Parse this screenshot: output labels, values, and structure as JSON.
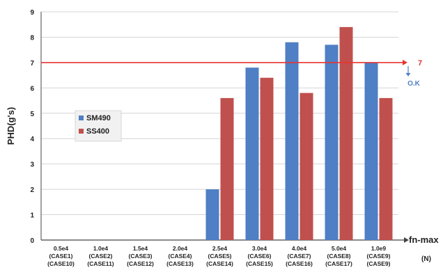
{
  "chart_data": {
    "type": "bar",
    "ylabel": "PHD(g's)",
    "xlabel": "fn-max",
    "x_unit": "(N)",
    "ylim": [
      0,
      9
    ],
    "yticks": [
      "0",
      "1",
      "2",
      "3",
      "4",
      "5",
      "6",
      "7",
      "8",
      "9"
    ],
    "categories": [
      [
        "0.5e4",
        "(CASE1)",
        "(CASE10)"
      ],
      [
        "1.0e4",
        "(CASE2)",
        "(CASE11)"
      ],
      [
        "1.5e4",
        "(CASE3)",
        "(CASE12)"
      ],
      [
        "2.0e4",
        "(CASE4)",
        "(CASE13)"
      ],
      [
        "2.5e4",
        "(CASE5)",
        "(CASE14)"
      ],
      [
        "3.0e4",
        "(CASE6)",
        "(CASE15)"
      ],
      [
        "4.0e4",
        "(CASE7)",
        "(CASE16)"
      ],
      [
        "5.0e4",
        "(CASE8)",
        "(CASE17)"
      ],
      [
        "1.0e9",
        "(CASE9)",
        "(CASE9)"
      ]
    ],
    "series": [
      {
        "name": "SM490",
        "color": "#4f7fc4",
        "values": [
          null,
          null,
          null,
          null,
          2.0,
          6.8,
          7.8,
          7.7,
          7.0
        ]
      },
      {
        "name": "SS400",
        "color": "#c0504d",
        "values": [
          null,
          null,
          null,
          null,
          5.6,
          6.4,
          5.8,
          8.4,
          5.6
        ]
      }
    ],
    "reference_line": {
      "value": 7,
      "label": "7",
      "color": "#e8332f"
    },
    "annotation": "O.K",
    "legend_position": "left-middle",
    "grid": "horizontal"
  }
}
